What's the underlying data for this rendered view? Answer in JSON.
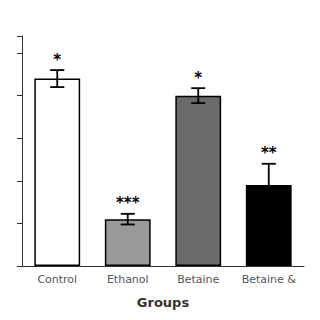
{
  "chart_data": {
    "type": "bar",
    "xlabel": "Groups",
    "categories": [
      "Control",
      "Ethanol",
      "Betaine",
      "Betaine &"
    ],
    "values": [
      88,
      22,
      80,
      38
    ],
    "errors": [
      4,
      2.5,
      3.5,
      10
    ],
    "annotations": [
      "*",
      "***",
      "*",
      "**"
    ],
    "colors": [
      "#ffffff",
      "#999999",
      "#6a6a6a",
      "#000000"
    ],
    "ylim": [
      0,
      108
    ],
    "yticks": [
      0,
      20,
      40,
      60,
      80,
      100
    ],
    "tick_labels": "x",
    "grid": false
  }
}
